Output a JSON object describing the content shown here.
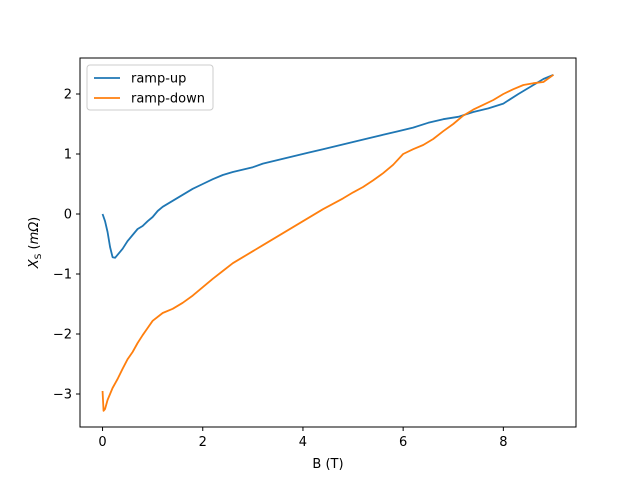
{
  "chart_data": {
    "type": "line",
    "xlabel": "B (T)",
    "ylabel": "X_S (mΩ)",
    "ylabel_parts": {
      "symbol": "X",
      "subscript": "S",
      "unit": "mΩ"
    },
    "xlim": [
      -0.45,
      9.45
    ],
    "ylim": [
      -3.55,
      2.6
    ],
    "xticks": [
      0,
      2,
      4,
      6,
      8
    ],
    "yticks": [
      -3,
      -2,
      -1,
      0,
      1,
      2
    ],
    "xtick_labels": [
      "0",
      "2",
      "4",
      "6",
      "8"
    ],
    "ytick_labels": [
      "−3",
      "−2",
      "−1",
      "0",
      "1",
      "2"
    ],
    "grid": false,
    "legend_position": "upper-left",
    "series": [
      {
        "name": "ramp-up",
        "color": "#1f77b4",
        "x": [
          0,
          0.05,
          0.1,
          0.15,
          0.2,
          0.25,
          0.3,
          0.4,
          0.5,
          0.6,
          0.7,
          0.8,
          0.9,
          1.0,
          1.1,
          1.2,
          1.4,
          1.6,
          1.8,
          2.0,
          2.2,
          2.4,
          2.6,
          2.8,
          3.0,
          3.2,
          3.5,
          3.8,
          4.1,
          4.4,
          4.7,
          5.0,
          5.3,
          5.6,
          5.9,
          6.2,
          6.5,
          6.8,
          7.1,
          7.4,
          7.7,
          8.0,
          8.3,
          8.6,
          8.8,
          9.0
        ],
        "y": [
          0,
          -0.12,
          -0.3,
          -0.55,
          -0.72,
          -0.73,
          -0.68,
          -0.58,
          -0.45,
          -0.35,
          -0.25,
          -0.2,
          -0.12,
          -0.05,
          0.05,
          0.12,
          0.22,
          0.32,
          0.42,
          0.5,
          0.58,
          0.65,
          0.7,
          0.74,
          0.78,
          0.84,
          0.9,
          0.96,
          1.02,
          1.08,
          1.14,
          1.2,
          1.26,
          1.32,
          1.38,
          1.44,
          1.52,
          1.58,
          1.62,
          1.7,
          1.76,
          1.84,
          2.0,
          2.15,
          2.25,
          2.32
        ]
      },
      {
        "name": "ramp-down",
        "color": "#ff7f0e",
        "x": [
          9.0,
          8.8,
          8.6,
          8.4,
          8.2,
          8.0,
          7.8,
          7.6,
          7.4,
          7.2,
          7.0,
          6.8,
          6.6,
          6.4,
          6.2,
          6.0,
          5.8,
          5.6,
          5.4,
          5.2,
          5.0,
          4.8,
          4.6,
          4.4,
          4.2,
          4.0,
          3.8,
          3.6,
          3.4,
          3.2,
          3.0,
          2.8,
          2.6,
          2.4,
          2.2,
          2.0,
          1.8,
          1.6,
          1.4,
          1.2,
          1.0,
          0.9,
          0.8,
          0.7,
          0.6,
          0.5,
          0.4,
          0.3,
          0.2,
          0.1,
          0.05,
          0.02,
          0
        ],
        "y": [
          2.32,
          2.2,
          2.18,
          2.15,
          2.08,
          2.0,
          1.9,
          1.82,
          1.74,
          1.64,
          1.5,
          1.38,
          1.25,
          1.15,
          1.08,
          1.0,
          0.82,
          0.68,
          0.56,
          0.45,
          0.36,
          0.26,
          0.17,
          0.08,
          -0.02,
          -0.12,
          -0.22,
          -0.32,
          -0.42,
          -0.52,
          -0.62,
          -0.72,
          -0.82,
          -0.95,
          -1.08,
          -1.22,
          -1.36,
          -1.48,
          -1.58,
          -1.65,
          -1.78,
          -1.9,
          -2.02,
          -2.15,
          -2.3,
          -2.42,
          -2.58,
          -2.75,
          -2.9,
          -3.1,
          -3.25,
          -3.28,
          -2.95
        ]
      }
    ]
  }
}
